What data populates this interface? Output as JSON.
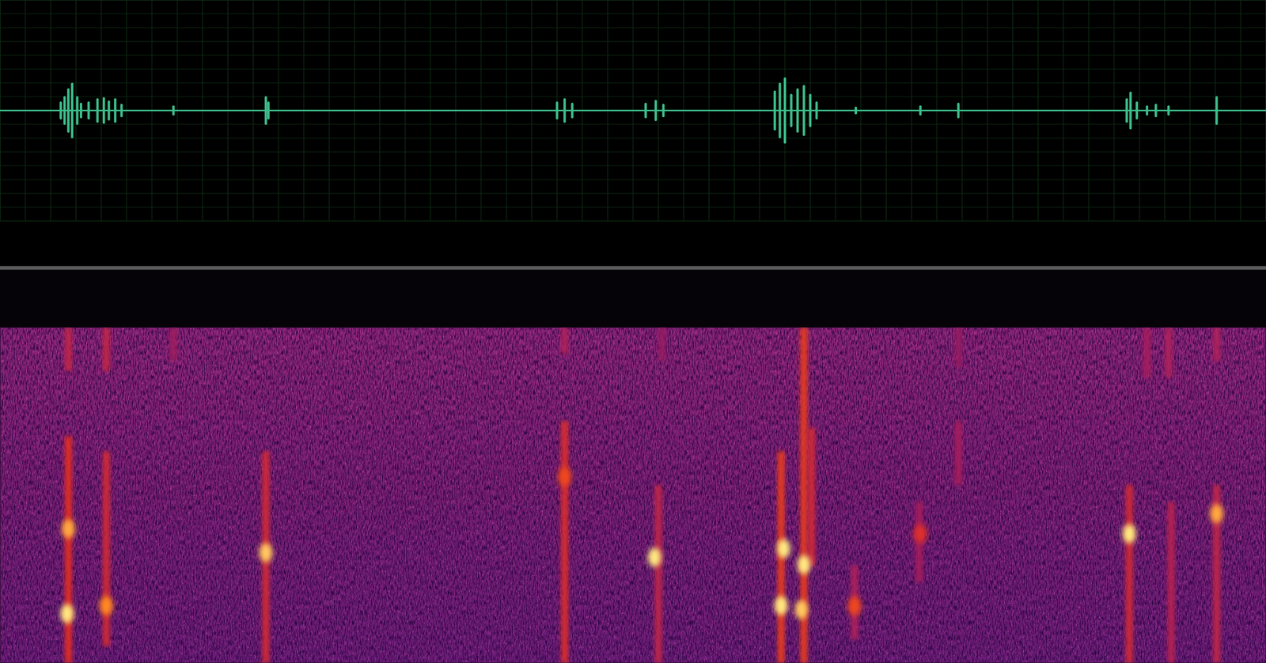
{
  "chart_data": [
    {
      "type": "waveform",
      "xlim": [
        0,
        100
      ],
      "ylim": [
        -1,
        1
      ],
      "xticks": [
        0,
        2,
        4,
        6,
        8,
        10,
        12,
        14,
        16,
        18,
        20,
        22,
        24,
        26,
        28,
        30,
        32,
        34,
        36,
        38,
        40,
        42,
        44,
        46,
        48,
        50,
        52,
        54,
        56,
        58,
        60,
        62,
        64,
        66,
        68,
        70,
        72,
        74,
        76,
        78,
        80,
        82,
        84,
        86,
        88,
        90,
        92,
        94,
        96,
        98,
        100
      ],
      "yticks": [
        -1,
        -0.875,
        -0.75,
        -0.625,
        -0.5,
        -0.375,
        -0.25,
        -0.125,
        0,
        0.125,
        0.25,
        0.375,
        0.5,
        0.625,
        0.75,
        0.875,
        1
      ],
      "grid": true,
      "tick_labels": false,
      "color": "#3dbd8a",
      "x": [
        4.8,
        5.1,
        5.4,
        5.7,
        6.1,
        6.4,
        7.0,
        7.7,
        8.2,
        8.6,
        9.1,
        9.6,
        13.7,
        21.0,
        21.2,
        44.0,
        44.6,
        45.2,
        51.0,
        51.8,
        52.4,
        61.2,
        61.6,
        62.0,
        62.5,
        63.0,
        63.5,
        64.0,
        64.5,
        67.6,
        72.7,
        75.7,
        89.0,
        89.3,
        89.8,
        90.6,
        91.3,
        92.3,
        96.1
      ],
      "values": [
        0.07,
        0.12,
        0.19,
        0.24,
        0.12,
        0.06,
        0.07,
        0.1,
        0.11,
        0.08,
        0.1,
        0.05,
        0.035,
        0.12,
        0.07,
        0.07,
        0.1,
        0.06,
        0.06,
        0.085,
        0.05,
        0.17,
        0.24,
        0.29,
        0.14,
        0.19,
        0.22,
        0.14,
        0.07,
        0.025,
        0.035,
        0.06,
        0.1,
        0.16,
        0.07,
        0.035,
        0.05,
        0.035,
        0.12
      ]
    },
    {
      "type": "spectrogram",
      "xlim": [
        0,
        100
      ],
      "ylim": [
        0,
        1
      ],
      "zlim": [
        0,
        1
      ],
      "tick_labels": false,
      "streaks": {
        "x": [
          5.4,
          8.4,
          21.0,
          44.6,
          52.0,
          61.7,
          63.5,
          64.1,
          67.5,
          72.6,
          75.7,
          89.2,
          92.5,
          96.1,
          5.4,
          8.4,
          13.7,
          44.6,
          52.3,
          90.6,
          92.3,
          96.1,
          75.7
        ],
        "low": [
          0,
          0.05,
          0,
          0,
          0,
          0,
          0,
          0.29,
          0.07,
          0.24,
          0.53,
          0,
          0,
          0,
          0.87,
          0.87,
          0.9,
          0.92,
          0.9,
          0.85,
          0.85,
          0.9,
          0.88
        ],
        "high": [
          0.675,
          0.63,
          0.63,
          0.72,
          0.53,
          0.63,
          1,
          0.7,
          0.29,
          0.48,
          0.72,
          0.53,
          0.48,
          0.53,
          1,
          1,
          1,
          1,
          1,
          1,
          1,
          1,
          1
        ],
        "intensity": [
          0.8,
          0.7,
          0.7,
          0.75,
          0.6,
          0.85,
          0.85,
          0.7,
          0.5,
          0.45,
          0.45,
          0.7,
          0.55,
          0.6,
          0.6,
          0.6,
          0.4,
          0.5,
          0.35,
          0.45,
          0.5,
          0.5,
          0.35
        ]
      },
      "peaks": {
        "x": [
          5.4,
          5.3,
          8.4,
          21.0,
          44.6,
          51.7,
          61.9,
          63.5,
          61.7,
          63.3,
          89.2,
          96.1,
          67.5,
          72.7
        ],
        "y": [
          0.4,
          0.147,
          0.171,
          0.329,
          0.555,
          0.315,
          0.341,
          0.293,
          0.171,
          0.159,
          0.385,
          0.445,
          0.17,
          0.385
        ],
        "intensity": [
          0.9,
          1.0,
          0.85,
          0.95,
          0.7,
          1.0,
          1.0,
          1.0,
          1.0,
          0.95,
          1.0,
          0.9,
          0.7,
          0.6
        ]
      }
    }
  ]
}
